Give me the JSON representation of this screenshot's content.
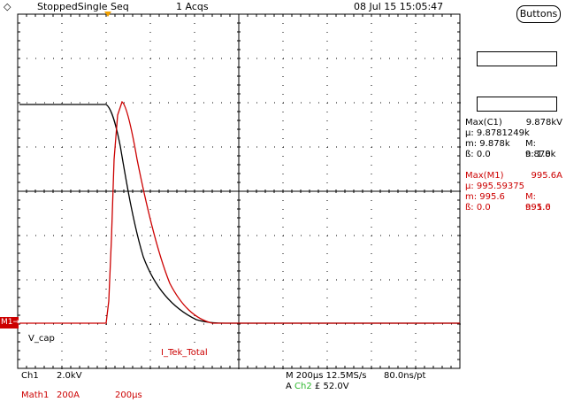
{
  "header": {
    "status": "StoppedSingle Seq",
    "acqs": "1 Acqs",
    "datetime": "08 Jul 15 15:05:47",
    "buttons_label": "Buttons"
  },
  "markers": {
    "m1": "M1"
  },
  "labels": {
    "vcap": "V_cap",
    "itek": "I_Tek_Total"
  },
  "measurements": {
    "c1": {
      "title": "Max(C1)",
      "value": "9.878kV",
      "mu": "µ: 9.8781249k",
      "m": "m: 9.878k",
      "M": "M: 9.878k",
      "sigma": "ß: 0.0",
      "n": "n: 1.0"
    },
    "m1": {
      "title": "Max(M1)",
      "value": "995.6A",
      "mu": "µ: 995.59375",
      "m": "m: 995.6",
      "M": "M: 995.6",
      "sigma": "ß: 0.0",
      "n": "n: 1.0"
    }
  },
  "footer": {
    "ch1": "Ch1",
    "ch1_scale": "2.0kV",
    "math1": "Math1",
    "math1_scale": "200A",
    "math1_time": "200µs",
    "timebase": "M 200µs 12.5MS/s",
    "record": "80.0ns/pt",
    "trigger_prefix": "A",
    "trigger_src": "Ch2",
    "trigger_slope": "£",
    "trigger_level": "52.0V"
  },
  "colors": {
    "ch1": "#000000",
    "math1": "#cc0000",
    "trigger": "#f0a000"
  }
}
